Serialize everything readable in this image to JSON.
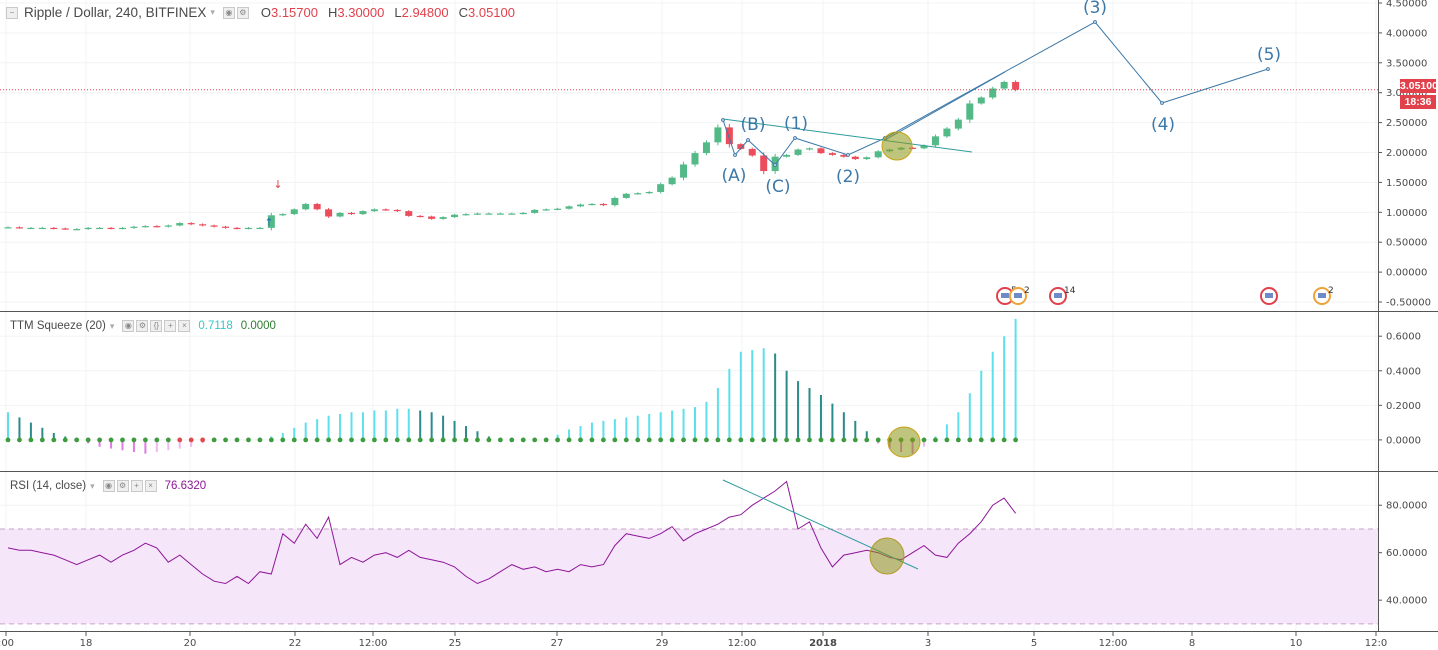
{
  "header": {
    "symbol": "Ripple / Dollar, 240, BITFINEX",
    "ohlc": [
      {
        "k": "O",
        "v": "3.15700"
      },
      {
        "k": "H",
        "v": "3.30000"
      },
      {
        "k": "L",
        "v": "2.94800"
      },
      {
        "k": "C",
        "v": "3.05100"
      }
    ]
  },
  "price_tag": {
    "value": "3.05100",
    "countdown": "18:36"
  },
  "colors": {
    "up": "#53b987",
    "down": "#eb4d5c",
    "annot": "#3c78a8",
    "rsi": "#8e1599",
    "ttm_pos": "#5de0ec",
    "ttm_pos_dark": "#2a8b8b",
    "ttm_neg": "#e07be0",
    "dot_green": "#3e9b3e",
    "dot_red": "#e04a4a"
  },
  "chart_data": [
    {
      "type": "candlestick",
      "title": "Ripple / Dollar, 240, BITFINEX",
      "y_ticks": [
        "4.50000",
        "4.00000",
        "3.50000",
        "3.00000",
        "2.50000",
        "2.00000",
        "1.50000",
        "1.00000",
        "0.50000",
        "0.00000",
        "-0.50000"
      ],
      "ylim": [
        -0.65,
        4.55
      ],
      "x_ticks": [
        ":00",
        "18",
        "20",
        "22",
        "12:00",
        "25",
        "27",
        "29",
        "12:00",
        "2018",
        "3",
        "5",
        "12:00",
        "8",
        "10",
        "12:0"
      ],
      "close": [
        0.75,
        0.74,
        0.74,
        0.74,
        0.73,
        0.72,
        0.72,
        0.74,
        0.74,
        0.73,
        0.74,
        0.76,
        0.77,
        0.76,
        0.78,
        0.82,
        0.8,
        0.78,
        0.76,
        0.74,
        0.73,
        0.74,
        0.74,
        0.95,
        0.97,
        1.05,
        1.14,
        1.05,
        0.93,
        0.99,
        0.97,
        1.02,
        1.05,
        1.04,
        1.02,
        0.94,
        0.93,
        0.89,
        0.92,
        0.96,
        0.97,
        0.98,
        0.98,
        0.98,
        0.98,
        0.99,
        1.04,
        1.05,
        1.06,
        1.1,
        1.13,
        1.14,
        1.12,
        1.24,
        1.31,
        1.32,
        1.34,
        1.47,
        1.58,
        1.8,
        1.99,
        2.17,
        2.42,
        2.14,
        2.06,
        1.95,
        1.69,
        1.93,
        1.96,
        2.05,
        2.07,
        1.99,
        1.96,
        1.93,
        1.89,
        1.92,
        2.02,
        2.05,
        2.08,
        2.07,
        2.12,
        2.27,
        2.4,
        2.55,
        2.82,
        2.92,
        3.07,
        3.18,
        3.05
      ],
      "annotations": [
        "(A)",
        "(B)",
        "(C)",
        "(1)",
        "(2)",
        "(3)",
        "(4)",
        "(5)"
      ],
      "events": [
        "5",
        "2",
        "14",
        "2"
      ]
    },
    {
      "type": "bar",
      "title": "TTM Squeeze (20)",
      "value_1": "0.7118",
      "value_2": "0.0000",
      "y_ticks": [
        "0.6000",
        "0.4000",
        "0.2000",
        "0.0000"
      ],
      "ylim": [
        -0.18,
        0.74
      ],
      "values": [
        0.16,
        0.13,
        0.1,
        0.07,
        0.04,
        0.02,
        0.0,
        -0.02,
        -0.04,
        -0.05,
        -0.06,
        -0.07,
        -0.08,
        -0.07,
        -0.06,
        -0.05,
        -0.04,
        -0.02,
        -0.01,
        0.0,
        0.0,
        0.0,
        0.0,
        0.02,
        0.04,
        0.07,
        0.1,
        0.12,
        0.14,
        0.15,
        0.16,
        0.16,
        0.17,
        0.17,
        0.18,
        0.18,
        0.17,
        0.16,
        0.14,
        0.11,
        0.08,
        0.05,
        0.02,
        0.0,
        0.0,
        0.0,
        0.0,
        0.0,
        0.03,
        0.06,
        0.08,
        0.1,
        0.11,
        0.12,
        0.13,
        0.14,
        0.15,
        0.16,
        0.17,
        0.18,
        0.19,
        0.22,
        0.3,
        0.41,
        0.51,
        0.52,
        0.53,
        0.5,
        0.4,
        0.34,
        0.3,
        0.26,
        0.21,
        0.16,
        0.11,
        0.05,
        -0.02,
        -0.05,
        -0.07,
        -0.08,
        -0.04,
        0.02,
        0.09,
        0.16,
        0.27,
        0.4,
        0.51,
        0.6,
        0.7
      ]
    },
    {
      "type": "line",
      "title": "RSI (14, close)",
      "value": "76.6320",
      "y_ticks": [
        "80.0000",
        "60.0000",
        "40.0000"
      ],
      "band": [
        30,
        70
      ],
      "ylim": [
        27,
        94
      ],
      "values": [
        62,
        61,
        61,
        60,
        59,
        57,
        55,
        57,
        59,
        56,
        59,
        61,
        64,
        62,
        56,
        59,
        55,
        51,
        48,
        47,
        50,
        47,
        52,
        51,
        68,
        64,
        72,
        66,
        75,
        55,
        58,
        56,
        59,
        60,
        58,
        61,
        58,
        57,
        56,
        54,
        50,
        47,
        49,
        52,
        55,
        53,
        54,
        52,
        53,
        52,
        55,
        54,
        55,
        63,
        68,
        67,
        66,
        68,
        71,
        65,
        68,
        70,
        72,
        75,
        76,
        80,
        83,
        86,
        90,
        70,
        73,
        62,
        54,
        59,
        60,
        61,
        60,
        58,
        57,
        60,
        63,
        59,
        58,
        64,
        68,
        73,
        80,
        83,
        76.6
      ]
    }
  ]
}
